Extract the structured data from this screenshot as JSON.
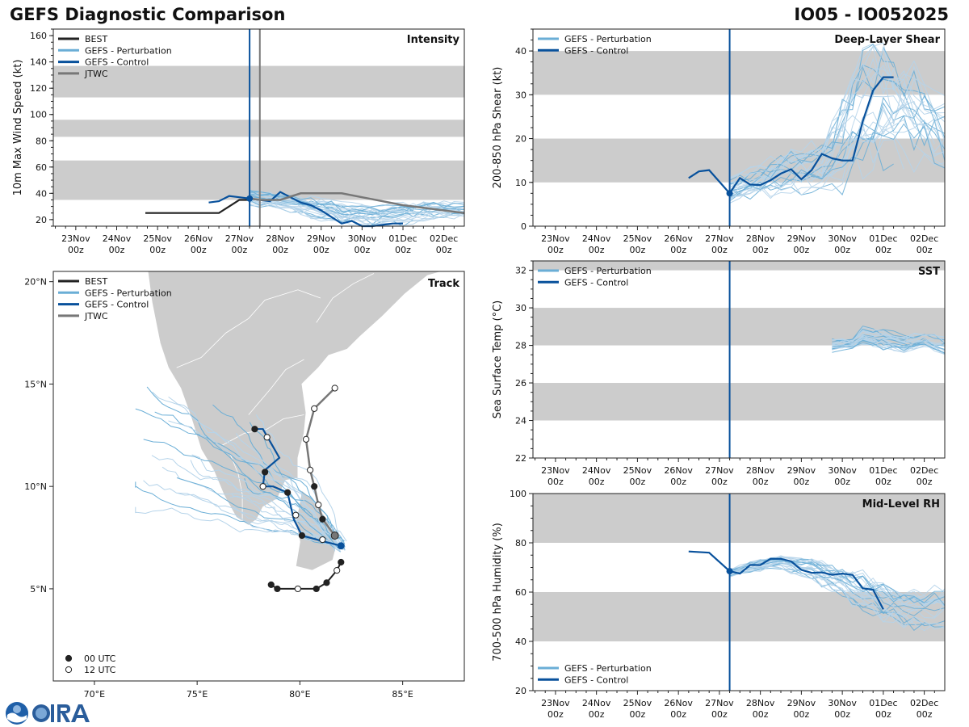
{
  "header": {
    "title": "GEFS Diagnostic Comparison",
    "storm": "IO05 - IO052025"
  },
  "colors": {
    "best": "#222222",
    "perturbation": "#6aaed6",
    "perturbation_light": "#b6d4ea",
    "control": "#08519c",
    "jtwc": "#777777",
    "band": "#cccccc",
    "land": "#cccccc",
    "init_line": "#08519c"
  },
  "time_axis": {
    "labels": [
      [
        "23Nov",
        "00z"
      ],
      [
        "24Nov",
        "00z"
      ],
      [
        "25Nov",
        "00z"
      ],
      [
        "26Nov",
        "00z"
      ],
      [
        "27Nov",
        "00z"
      ],
      [
        "28Nov",
        "00z"
      ],
      [
        "29Nov",
        "00z"
      ],
      [
        "30Nov",
        "00z"
      ],
      [
        "01Dec",
        "00z"
      ],
      [
        "02Dec",
        "00z"
      ]
    ],
    "start_day": 22.45,
    "end_day": 32.5,
    "init_day": 27.25
  },
  "legend": {
    "best": "BEST",
    "perturbation": "GEFS - Perturbation",
    "control": "GEFS - Control",
    "jtwc": "JTWC",
    "utc00": "00 UTC",
    "utc12": "12 UTC"
  },
  "chart_data": [
    {
      "id": "intensity",
      "type": "line",
      "title": "Intensity",
      "ylabel": "10m Max Wind Speed (kt)",
      "ylim": [
        15,
        165
      ],
      "yticks": [
        20,
        40,
        60,
        80,
        100,
        120,
        140,
        160
      ],
      "bands": [
        [
          35,
          65
        ],
        [
          83,
          96
        ],
        [
          113,
          137
        ]
      ],
      "jtwc_line_day": 27.5,
      "series": [
        {
          "name": "BEST",
          "x": [
            24.7,
            25.5,
            26.5,
            27.0,
            27.25
          ],
          "y": [
            25,
            25,
            25,
            35,
            35
          ]
        },
        {
          "name": "GEFS - Control",
          "x": [
            26.25,
            26.5,
            26.75,
            27.0,
            27.25,
            27.5,
            27.75,
            28.0,
            28.25,
            28.5,
            28.75,
            29.0,
            29.25,
            29.5,
            29.75,
            30.0,
            30.25,
            30.5,
            30.75,
            31.0
          ],
          "y": [
            33,
            34,
            38,
            37,
            36,
            35,
            34,
            41,
            37,
            33,
            31,
            27,
            22,
            17,
            19,
            15,
            15,
            16,
            17,
            17
          ]
        },
        {
          "name": "JTWC",
          "x": [
            27.25,
            27.5,
            28.0,
            28.5,
            29.0,
            29.5,
            30.0,
            31.0,
            32.5
          ],
          "y": [
            36,
            35,
            35,
            40,
            40,
            40,
            37,
            31,
            25
          ]
        }
      ],
      "ensemble_spread": {
        "x": [
          27.25,
          28.0,
          28.75,
          29.5,
          30.25,
          31.0,
          31.75,
          32.5
        ],
        "low": [
          30,
          26,
          20,
          15,
          14,
          15,
          17,
          20
        ],
        "high": [
          45,
          41,
          38,
          34,
          32,
          35,
          36,
          34
        ]
      }
    },
    {
      "id": "shear",
      "type": "line",
      "title": "Deep-Layer Shear",
      "ylabel": "200-850 hPa Shear (kt)",
      "ylim": [
        0,
        45
      ],
      "yticks": [
        0,
        10,
        20,
        30,
        40
      ],
      "bands": [
        [
          10,
          20
        ],
        [
          30,
          40
        ]
      ],
      "series": [
        {
          "name": "GEFS - Control",
          "x": [
            26.25,
            26.5,
            26.75,
            27.25,
            27.5,
            27.75,
            28.0,
            28.25,
            28.5,
            28.75,
            29.0,
            29.25,
            29.5,
            29.75,
            30.0,
            30.25,
            30.5,
            30.75,
            31.0,
            31.25
          ],
          "y": [
            11,
            12.5,
            12.8,
            7.5,
            11,
            9.5,
            9.4,
            10.5,
            12,
            13,
            10.7,
            12.8,
            16.5,
            15.5,
            15,
            15,
            24,
            31,
            34,
            34
          ]
        }
      ],
      "ensemble_spread": {
        "x": [
          27.25,
          28.0,
          28.75,
          29.5,
          30.0,
          30.5,
          31.0,
          31.5,
          32.0,
          32.5
        ],
        "low": [
          4,
          6,
          6,
          7,
          7,
          10,
          12,
          10,
          12,
          8
        ],
        "high": [
          12,
          15,
          20,
          20,
          32,
          44,
          45,
          42,
          36,
          32
        ]
      }
    },
    {
      "id": "sst",
      "type": "line",
      "title": "SST",
      "ylabel": "Sea Surface Temp (°C)",
      "ylim": [
        22,
        32.5
      ],
      "yticks": [
        22,
        24,
        26,
        28,
        30,
        32
      ],
      "bands": [
        [
          24,
          26
        ],
        [
          28,
          30
        ],
        [
          32,
          32.5
        ]
      ],
      "series": [],
      "ensemble_spread": {
        "x": [
          29.75,
          30.25,
          30.5,
          31.0,
          31.5,
          32.0,
          32.5
        ],
        "low": [
          27.6,
          27.8,
          27.9,
          27.7,
          27.4,
          27.8,
          27.3
        ],
        "high": [
          28.4,
          28.4,
          29.1,
          28.9,
          28.8,
          28.7,
          28.6
        ]
      }
    },
    {
      "id": "rh",
      "type": "line",
      "title": "Mid-Level RH",
      "ylabel": "700-500 hPa Humidity (%)",
      "ylim": [
        20,
        100
      ],
      "yticks": [
        20,
        40,
        60,
        80,
        100
      ],
      "bands": [
        [
          40,
          60
        ],
        [
          80,
          100
        ]
      ],
      "series": [
        {
          "name": "GEFS - Control",
          "x": [
            26.25,
            26.75,
            27.25,
            27.5,
            27.75,
            28.0,
            28.25,
            28.5,
            28.75,
            29.0,
            29.25,
            29.5,
            29.75,
            30.0,
            30.25,
            30.5,
            30.75,
            31.0
          ],
          "y": [
            76.5,
            76,
            68.5,
            67.5,
            71,
            71,
            73.5,
            73.5,
            72.5,
            69,
            67.8,
            68,
            67,
            67.5,
            67,
            61.5,
            61,
            53
          ]
        }
      ],
      "ensemble_spread": {
        "x": [
          27.25,
          27.75,
          28.5,
          29.25,
          30.0,
          30.75,
          31.5,
          32.5
        ],
        "low": [
          66,
          68,
          69,
          64,
          57,
          48,
          45,
          43
        ],
        "high": [
          70,
          73,
          76,
          75,
          72,
          68,
          62,
          64
        ]
      }
    },
    {
      "id": "track",
      "type": "scatter",
      "title": "Track",
      "xlim": [
        68,
        88
      ],
      "ylim": [
        0.5,
        20.5
      ],
      "xticks": [
        70,
        75,
        80,
        85
      ],
      "xtick_labels": [
        "70°E",
        "75°E",
        "80°E",
        "85°E"
      ],
      "yticks": [
        5,
        10,
        15,
        20
      ],
      "ytick_labels": [
        "5°N",
        "10°N",
        "15°N",
        "20°N"
      ],
      "best_track": [
        [
          78.6,
          5.2,
          0
        ],
        [
          78.9,
          5.0,
          0
        ],
        [
          79.9,
          5.0,
          1
        ],
        [
          80.8,
          5.0,
          0
        ],
        [
          81.3,
          5.3,
          0
        ],
        [
          81.8,
          5.9,
          1
        ],
        [
          82.0,
          6.3,
          0
        ]
      ],
      "control_track": [
        [
          82.0,
          7.1
        ],
        [
          81.2,
          7.3
        ],
        [
          80.1,
          7.6
        ],
        [
          79.7,
          8.4
        ],
        [
          79.4,
          9.7
        ],
        [
          78.7,
          10.0
        ],
        [
          78.2,
          10.0
        ],
        [
          78.3,
          10.8
        ],
        [
          79.0,
          11.4
        ],
        [
          78.6,
          12.1
        ],
        [
          78.2,
          12.8
        ],
        [
          77.8,
          12.8
        ]
      ],
      "control_markers": [
        [
          81.1,
          7.4,
          1
        ],
        [
          80.1,
          7.6,
          0
        ],
        [
          79.8,
          8.6,
          1
        ],
        [
          79.4,
          9.7,
          0
        ],
        [
          78.2,
          10.0,
          1
        ],
        [
          78.3,
          10.7,
          0
        ],
        [
          78.4,
          12.4,
          1
        ],
        [
          77.8,
          12.8,
          0
        ]
      ],
      "jtwc_track": [
        [
          81.7,
          7.6,
          0
        ],
        [
          81.1,
          8.4,
          0
        ],
        [
          80.9,
          9.1,
          1
        ],
        [
          80.7,
          10.0,
          0
        ],
        [
          80.5,
          10.8,
          1
        ],
        [
          80.3,
          12.3,
          1
        ],
        [
          80.7,
          13.8,
          1
        ],
        [
          81.7,
          14.8,
          1
        ]
      ]
    }
  ]
}
